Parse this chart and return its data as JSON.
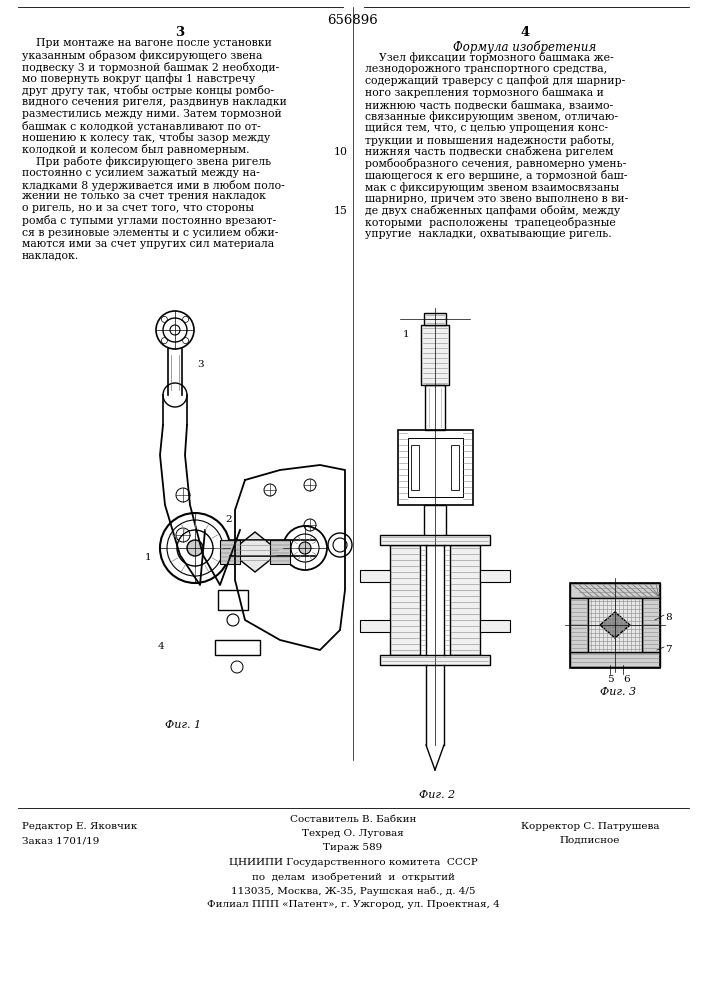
{
  "patent_number": "656896",
  "page_left_number": "3",
  "page_right_number": "4",
  "right_title": "Формула изобретения",
  "left_text_line1": "    При монтаже на вагоне после установки",
  "left_text_line2": "указанным образом фиксирующего звена",
  "left_text_line3": "подвеску 3 и тормозной башмак 2 необходи-",
  "left_text_line4": "мо повернуть вокруг цапфы 1 навстречу",
  "left_text_line5": "друг другу так, чтобы острые концы ромбо-",
  "left_text_line6": "видного сечения ригеля, раздвинув накладки",
  "left_text_line7": "разместились между ними. Затем тормозной",
  "left_text_line8": "башмак с колодкой устанавливают по от-",
  "left_text_line9": "ношению к колесу так, чтобы зазор между",
  "left_text_line10": "колодкой и колесом был равномерным.",
  "left_text_line11": "    При работе фиксирующего звена ригель",
  "left_text_line12": "постоянно с усилием зажатый между на-",
  "left_text_line13": "кладками 8 удерживается ими в любом поло-",
  "left_text_line14": "жении не только за счет трения накладок",
  "left_text_line15": "о ригель, но и за счет того, что стороны",
  "left_text_line16": "ромба с тупыми углами постоянно врезают-",
  "left_text_line17": "ся в резиновые элементы и с усилием обжи-",
  "left_text_line18": "маются ими за счет упругих сил материала",
  "left_text_line19": "накладок.",
  "right_text_line1": "    Узел фиксации тормозного башмака же-",
  "right_text_line2": "лезнодорожного транспортного средства,",
  "right_text_line3": "содержащий траверсу с цапфой для шарнир-",
  "right_text_line4": "ного закрепления тормозного башмака и",
  "right_text_line5": "нижнюю часть подвески башмака, взаимо-",
  "right_text_line6": "связанные фиксирующим звеном, отличаю-",
  "right_text_line7": "щийся тем, что, с целью упрощения конс-",
  "right_text_line8": "трукции и повышения надежности работы,",
  "right_text_line9": "нижняя часть подвески снабжена ригелем",
  "right_text_line10": "ромбообразного сечения, равномерно умень-",
  "right_text_line11": "шающегося к его вершине, а тормозной баш-",
  "right_text_line12": "мак с фиксирующим звеном взаимосвязаны",
  "right_text_line13": "шарнирно, причем это звено выполнено в ви-",
  "right_text_line14": "де двух снабженных цапфами обойм, между",
  "right_text_line15": "которыми  расположены  трапецеобразные",
  "right_text_line16": "упругие  накладки, охватывающие ригель.",
  "linenum_10": "10",
  "linenum_15": "15",
  "footer_left1": "Редактор Е. Яковчик",
  "footer_left2": "Заказ 1701/19",
  "footer_center1": "Составитель В. Бабкин",
  "footer_center2": "Техред О. Луговая",
  "footer_center3": "Тираж 589",
  "footer_right1": "Корректор С. Патрушева",
  "footer_right2": "Подписное",
  "footer_org1": "ЦНИИПИ Государственного комитета  СССР",
  "footer_org2": "по  делам  изобретений  и  открытий",
  "footer_org3": "113035, Москва, Ж-35, Раушская наб., д. 4/5",
  "footer_org4": "Филиал ППП «Патент», г. Ужгород, ул. Проектная, 4",
  "fig1_label": "Фиг. 1",
  "fig2_label": "Фиг. 2",
  "fig3_label": "Фиг. 3",
  "bg_color": "#ffffff"
}
